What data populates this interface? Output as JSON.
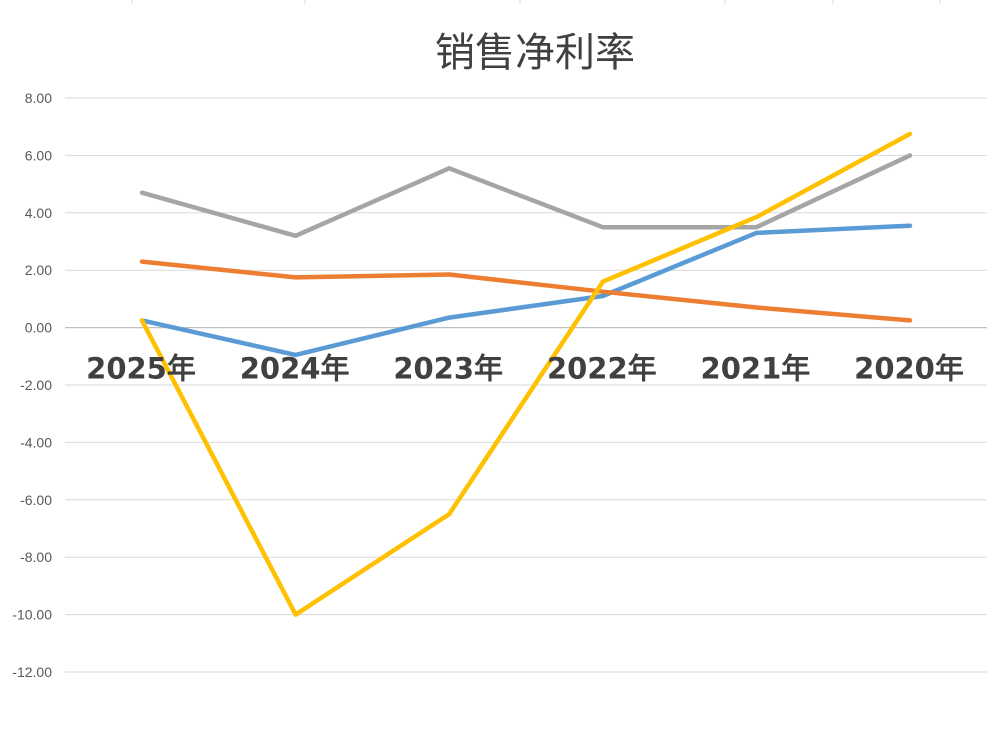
{
  "chart_data": {
    "type": "line",
    "title": "销售净利率",
    "xlabel": "",
    "ylabel": "",
    "categories": [
      "2025年",
      "2024年",
      "2023年",
      "2022年",
      "2021年",
      "2020年"
    ],
    "ylim": [
      -12,
      8
    ],
    "y_ticks": [
      "8.00",
      "6.00",
      "4.00",
      "2.00",
      "0.00",
      "-2.00",
      "-4.00",
      "-6.00",
      "-8.00",
      "-10.00",
      "-12.00"
    ],
    "y_tick_values": [
      8,
      6,
      4,
      2,
      0,
      -2,
      -4,
      -6,
      -8,
      -10,
      -12
    ],
    "grid": true,
    "legend": "none",
    "series": [
      {
        "color": "#5b9bd5",
        "values": [
          0.25,
          -0.95,
          0.35,
          1.1,
          3.3,
          3.55
        ]
      },
      {
        "color": "#ed7d31",
        "values": [
          2.3,
          1.75,
          1.85,
          1.25,
          0.7,
          0.25
        ]
      },
      {
        "color": "#a5a5a5",
        "values": [
          4.7,
          3.2,
          5.55,
          3.5,
          3.5,
          6.0
        ]
      },
      {
        "color": "#ffc000",
        "values": [
          0.25,
          -10.0,
          -6.5,
          1.6,
          3.85,
          6.75
        ]
      }
    ]
  }
}
